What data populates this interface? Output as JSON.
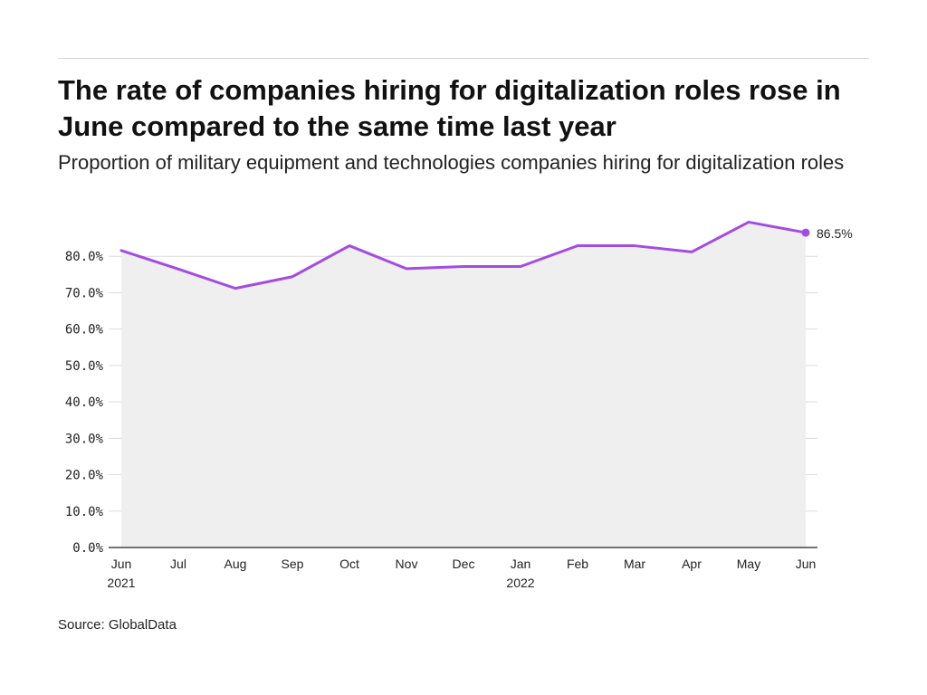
{
  "title": "The rate of companies hiring for digitalization roles rose in June compared to the same time last year",
  "subtitle": "Proportion of military equipment and technologies companies hiring for digitalization roles",
  "source": "Source: GlobalData",
  "colors": {
    "line": "#a34de0",
    "area": "#efefef",
    "grid": "#dcdcdc",
    "axis": "#222222"
  },
  "chart_data": {
    "type": "area",
    "categories": [
      "Jun 2021",
      "Jul",
      "Aug",
      "Sep",
      "Oct",
      "Nov",
      "Dec",
      "Jan 2022",
      "Feb",
      "Mar",
      "Apr",
      "May",
      "Jun"
    ],
    "x_tick_labels": [
      [
        "Jun",
        "2021"
      ],
      [
        "Jul"
      ],
      [
        "Aug"
      ],
      [
        "Sep"
      ],
      [
        "Oct"
      ],
      [
        "Nov"
      ],
      [
        "Dec"
      ],
      [
        "Jan",
        "2022"
      ],
      [
        "Feb"
      ],
      [
        "Mar"
      ],
      [
        "Apr"
      ],
      [
        "May"
      ],
      [
        "Jun"
      ]
    ],
    "values": [
      81.6,
      76.5,
      71.2,
      74.4,
      82.9,
      76.6,
      77.2,
      77.2,
      82.9,
      82.9,
      81.2,
      89.4,
      86.5
    ],
    "ylim": [
      0,
      90
    ],
    "y_ticks": [
      0,
      10,
      20,
      30,
      40,
      50,
      60,
      70,
      80
    ],
    "y_tick_labels": [
      "0.0%",
      "10.0%",
      "20.0%",
      "30.0%",
      "40.0%",
      "50.0%",
      "60.0%",
      "70.0%",
      "80.0%"
    ],
    "end_label": "86.5%",
    "grid": true
  }
}
